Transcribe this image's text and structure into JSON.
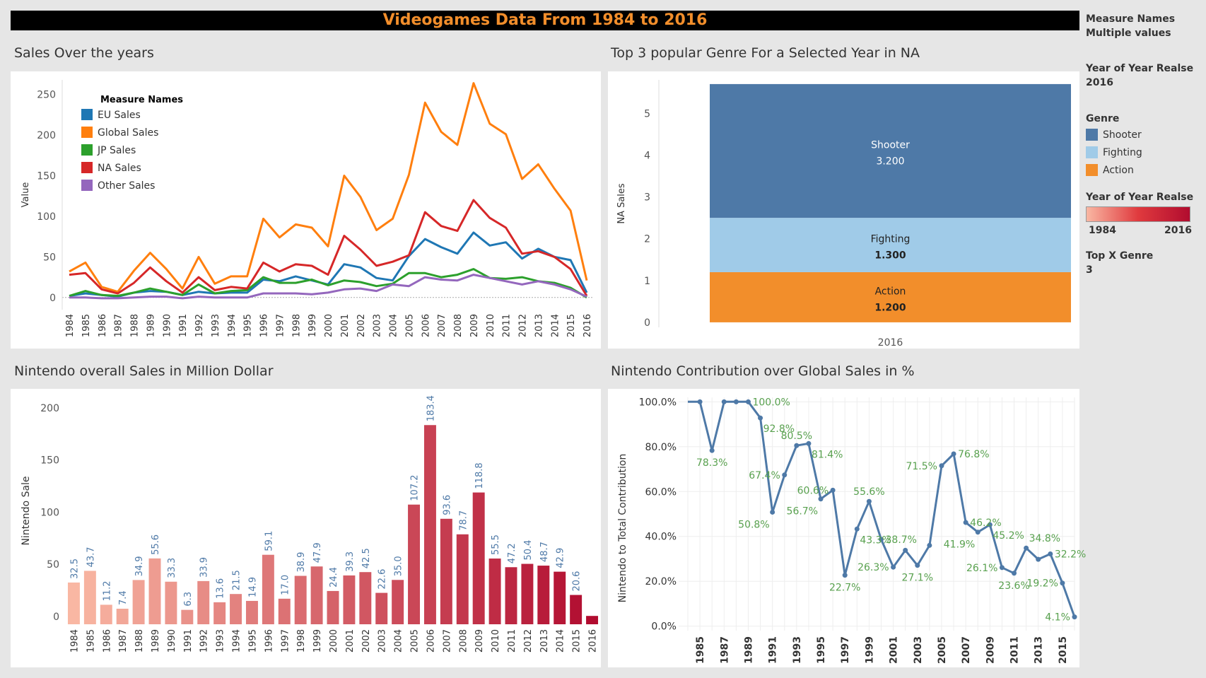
{
  "banner": "Videogames Data From 1984 to 2016",
  "titles": {
    "sales": "Sales Over the years",
    "genre": "Top 3 popular Genre For a Selected Year in NA",
    "nintendo": "Nintendo overall Sales in Million Dollar",
    "contrib": "Nintendo Contribution over Global Sales in %"
  },
  "sidebar": {
    "measure_label": "Measure Names",
    "measure_value": "Multiple values",
    "year_label": "Year of Year Realse",
    "year_value": "2016",
    "genre_label": "Genre",
    "genres": [
      {
        "name": "Shooter",
        "color": "#4e79a7"
      },
      {
        "name": "Fighting",
        "color": "#a0cbe8"
      },
      {
        "name": "Action",
        "color": "#f28e2b"
      }
    ],
    "color_label": "Year of Year Realse",
    "color_min": "1984",
    "color_max": "2016",
    "topx_label": "Top X Genre",
    "topx_value": "3"
  },
  "chart_data": [
    {
      "type": "line",
      "title": "Sales Over the years",
      "ylabel": "Value",
      "xlabel": "",
      "x": [
        1984,
        1985,
        1986,
        1987,
        1988,
        1989,
        1990,
        1991,
        1992,
        1993,
        1994,
        1995,
        1996,
        1997,
        1998,
        1999,
        2000,
        2001,
        2002,
        2003,
        2004,
        2005,
        2006,
        2007,
        2008,
        2009,
        2010,
        2011,
        2012,
        2013,
        2014,
        2015,
        2016
      ],
      "yticks": [
        0,
        50,
        100,
        150,
        200,
        250
      ],
      "ylim": [
        -15,
        268
      ],
      "legend": {
        "title": "Measure Names",
        "placement": "top-left"
      },
      "series": [
        {
          "name": "EU Sales",
          "color": "#1f77b4",
          "values": [
            2,
            5,
            3,
            1,
            6,
            8,
            7,
            3,
            7,
            5,
            6,
            6,
            22,
            20,
            26,
            21,
            16,
            41,
            37,
            24,
            21,
            51,
            72,
            62,
            54,
            80,
            64,
            68,
            48,
            60,
            50,
            46,
            6
          ]
        },
        {
          "name": "Global Sales",
          "color": "#ff7f0e",
          "values": [
            32,
            43,
            13,
            7,
            33,
            55,
            35,
            11,
            50,
            17,
            26,
            26,
            97,
            74,
            90,
            86,
            63,
            150,
            124,
            83,
            97,
            151,
            240,
            204,
            188,
            264,
            214,
            201,
            146,
            164,
            134,
            107,
            21
          ]
        },
        {
          "name": "JP Sales",
          "color": "#2ca02c",
          "values": [
            2,
            8,
            3,
            2,
            6,
            11,
            7,
            3,
            16,
            5,
            8,
            9,
            25,
            18,
            18,
            22,
            15,
            21,
            19,
            14,
            17,
            30,
            30,
            25,
            28,
            35,
            24,
            23,
            25,
            20,
            18,
            12,
            0
          ]
        },
        {
          "name": "NA Sales",
          "color": "#d62728",
          "values": [
            28,
            30,
            10,
            5,
            18,
            37,
            20,
            6,
            25,
            9,
            13,
            11,
            43,
            32,
            41,
            39,
            28,
            76,
            59,
            39,
            44,
            52,
            105,
            88,
            82,
            120,
            98,
            86,
            54,
            57,
            50,
            35,
            2
          ]
        },
        {
          "name": "Other Sales",
          "color": "#9467bd",
          "values": [
            0,
            0,
            -1,
            -1,
            0,
            1,
            1,
            -1,
            1,
            0,
            0,
            0,
            5,
            5,
            5,
            4,
            6,
            10,
            11,
            8,
            16,
            14,
            25,
            22,
            21,
            28,
            24,
            20,
            16,
            20,
            16,
            10,
            1
          ]
        }
      ]
    },
    {
      "type": "bar",
      "title": "Top 3 popular Genre For a Selected Year in NA",
      "ylabel": "NA Sales",
      "categories": [
        "2016"
      ],
      "yticks": [
        0,
        1,
        2,
        3,
        4,
        5
      ],
      "ylim": [
        -0.12,
        5.8
      ],
      "stacked": true,
      "series": [
        {
          "name": "Action",
          "color": "#f28e2b",
          "value": 1.2,
          "label": "1.200"
        },
        {
          "name": "Fighting",
          "color": "#a0cbe8",
          "value": 1.3,
          "label": "1.300"
        },
        {
          "name": "Shooter",
          "color": "#4e79a7",
          "value": 3.2,
          "label": "3.200"
        }
      ]
    },
    {
      "type": "bar",
      "title": "Nintendo overall Sales in Million Dollar",
      "ylabel": "Nintendo Sale",
      "categories": [
        "1984",
        "1985",
        "1986",
        "1987",
        "1988",
        "1989",
        "1990",
        "1991",
        "1992",
        "1993",
        "1994",
        "1995",
        "1996",
        "1997",
        "1998",
        "1999",
        "2000",
        "2001",
        "2002",
        "2003",
        "2004",
        "2005",
        "2006",
        "2007",
        "2008",
        "2009",
        "2010",
        "2011",
        "2012",
        "2013",
        "2014",
        "2015",
        "2016"
      ],
      "values": [
        32.5,
        43.7,
        11.2,
        7.4,
        34.9,
        55.6,
        33.3,
        6.3,
        33.9,
        13.6,
        21.5,
        14.9,
        59.1,
        17.0,
        38.9,
        47.9,
        24.4,
        39.3,
        42.5,
        22.6,
        35.0,
        107.2,
        183.4,
        93.6,
        78.7,
        118.8,
        55.5,
        47.2,
        50.4,
        48.7,
        42.9,
        20.6,
        0.5
      ],
      "labels": [
        "32.5",
        "43.7",
        "11.2",
        "7.4",
        "34.9",
        "55.6",
        "33.3",
        "6.3",
        "33.9",
        "13.6",
        "21.5",
        "14.9",
        "59.1",
        "17.0",
        "38.9",
        "47.9",
        "24.4",
        "39.3",
        "42.5",
        "22.6",
        "35.0",
        "107.2",
        "183.4",
        "93.6",
        "78.7",
        "118.8",
        "55.5",
        "47.2",
        "50.4",
        "48.7",
        "42.9",
        "20.6",
        ""
      ],
      "yticks": [
        0,
        50,
        100,
        150,
        200
      ],
      "ylim": [
        -7.5,
        210
      ],
      "color_range": [
        "#f9b7a3",
        "#b10c2f"
      ]
    },
    {
      "type": "line",
      "title": "Nintendo Contribution over Global Sales in %",
      "ylabel": "Nintendo to Total Contribution",
      "color": "#4e79a7",
      "label_color": "#59a14f",
      "x": [
        1984,
        1985,
        1986,
        1987,
        1988,
        1989,
        1990,
        1991,
        1992,
        1993,
        1994,
        1995,
        1996,
        1997,
        1998,
        1999,
        2000,
        2001,
        2002,
        2003,
        2004,
        2005,
        2006,
        2007,
        2008,
        2009,
        2010,
        2011,
        2012,
        2013,
        2014,
        2015,
        2016
      ],
      "xticks": [
        1985,
        1987,
        1989,
        1991,
        1993,
        1995,
        1997,
        1999,
        2001,
        2003,
        2005,
        2007,
        2009,
        2011,
        2013,
        2015
      ],
      "yticks": [
        0,
        20,
        40,
        60,
        80,
        100
      ],
      "ytick_labels": [
        "0.0%",
        "20.0%",
        "40.0%",
        "60.0%",
        "80.0%",
        "100.0%"
      ],
      "ylim": [
        -2,
        102
      ],
      "values": [
        100,
        100,
        78.3,
        100,
        100,
        100,
        92.8,
        50.8,
        67.4,
        80.5,
        81.4,
        56.7,
        60.6,
        22.7,
        43.3,
        55.6,
        38.7,
        26.3,
        33.8,
        27.1,
        36.0,
        71.5,
        76.8,
        46.2,
        41.9,
        45.2,
        26.1,
        23.6,
        34.8,
        29.8,
        32.2,
        19.2,
        4.1
      ],
      "labels": [
        {
          "year": 1986,
          "text": "78.3%",
          "pos": "below"
        },
        {
          "year": 1989,
          "text": "100.0%",
          "pos": "right"
        },
        {
          "year": 1990,
          "text": "92.8%",
          "pos": "right-below"
        },
        {
          "year": 1991,
          "text": "50.8%",
          "pos": "below-left"
        },
        {
          "year": 1992,
          "text": "67.4%",
          "pos": "left"
        },
        {
          "year": 1993,
          "text": "80.5%",
          "pos": "above"
        },
        {
          "year": 1994,
          "text": "81.4%",
          "pos": "right-below"
        },
        {
          "year": 1995,
          "text": "56.7%",
          "pos": "below-left"
        },
        {
          "year": 1996,
          "text": "60.6%",
          "pos": "left"
        },
        {
          "year": 1997,
          "text": "22.7%",
          "pos": "below"
        },
        {
          "year": 1998,
          "text": "43.3%",
          "pos": "right-below"
        },
        {
          "year": 1999,
          "text": "55.6%",
          "pos": "above"
        },
        {
          "year": 2000,
          "text": "38.7%",
          "pos": "right"
        },
        {
          "year": 2001,
          "text": "26.3%",
          "pos": "left"
        },
        {
          "year": 2003,
          "text": "27.1%",
          "pos": "below"
        },
        {
          "year": 2005,
          "text": "71.5%",
          "pos": "left"
        },
        {
          "year": 2006,
          "text": "76.8%",
          "pos": "right"
        },
        {
          "year": 2007,
          "text": "46.2%",
          "pos": "right"
        },
        {
          "year": 2008,
          "text": "41.9%",
          "pos": "below-left"
        },
        {
          "year": 2009,
          "text": "45.2%",
          "pos": "right-below"
        },
        {
          "year": 2010,
          "text": "26.1%",
          "pos": "left"
        },
        {
          "year": 2011,
          "text": "23.6%",
          "pos": "below"
        },
        {
          "year": 2012,
          "text": "34.8%",
          "pos": "above-right"
        },
        {
          "year": 2014,
          "text": "32.2%",
          "pos": "right"
        },
        {
          "year": 2015,
          "text": "19.2%",
          "pos": "left"
        },
        {
          "year": 2016,
          "text": "4.1%",
          "pos": "left"
        }
      ]
    }
  ]
}
